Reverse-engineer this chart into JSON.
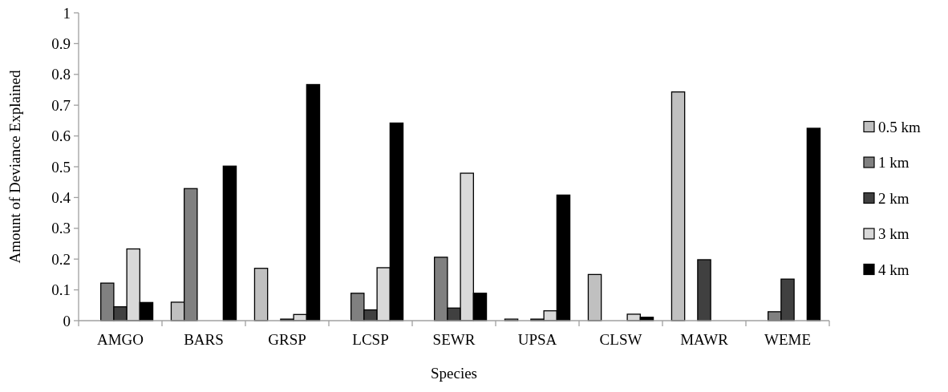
{
  "chart_data": {
    "type": "bar",
    "xlabel": "Species",
    "ylabel": "Amount of Deviance Explained",
    "categories": [
      "AMGO",
      "BARS",
      "GRSP",
      "LCSP",
      "SEWR",
      "UPSA",
      "CLSW",
      "MAWR",
      "WEME"
    ],
    "series": [
      {
        "name": "0.5 km",
        "color": "#c0c0c0",
        "values": [
          null,
          0.06,
          0.17,
          null,
          null,
          0.005,
          0.15,
          0.743,
          null
        ]
      },
      {
        "name": "1 km",
        "color": "#808080",
        "values": [
          0.122,
          0.429,
          null,
          0.089,
          0.206,
          null,
          null,
          null,
          0.029
        ]
      },
      {
        "name": "2 km",
        "color": "#404040",
        "values": [
          0.045,
          null,
          0.005,
          0.035,
          0.041,
          0.005,
          null,
          0.198,
          0.135
        ]
      },
      {
        "name": "3 km",
        "color": "#d9d9d9",
        "values": [
          0.233,
          null,
          0.02,
          0.172,
          0.479,
          0.032,
          0.021,
          null,
          null
        ]
      },
      {
        "name": "4 km",
        "color": "#000000",
        "values": [
          0.059,
          0.502,
          0.767,
          0.642,
          0.089,
          0.408,
          0.011,
          null,
          0.625
        ]
      }
    ],
    "ylim": [
      0,
      1
    ],
    "yticks": [
      0,
      0.1,
      0.2,
      0.3,
      0.4,
      0.5,
      0.6,
      0.7,
      0.8,
      0.9,
      1
    ],
    "grid": false,
    "legend": "right"
  }
}
